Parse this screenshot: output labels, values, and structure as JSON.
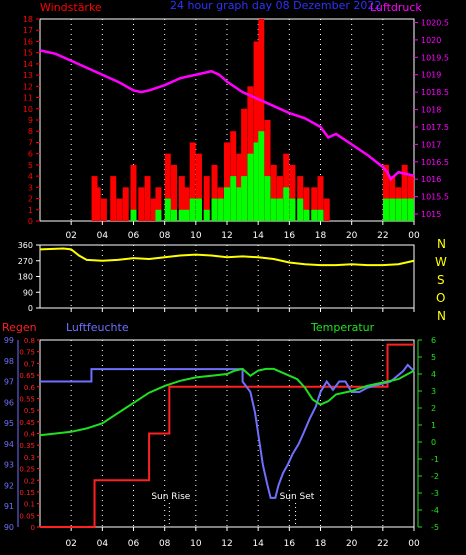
{
  "header": {
    "wind_label": "Windstärke",
    "title": "24 hour graph day 08 Dezember 2022",
    "pressure_label": "Luftdruck"
  },
  "bottom_header": {
    "rain_label": "Regen",
    "humidity_label": "Luftfeuchte",
    "temperature_label": "Temperatur"
  },
  "direction_labels": [
    "N",
    "W",
    "S",
    "O",
    "N"
  ],
  "sun": {
    "rise_label": "Sun Rise",
    "set_label": "Sun Set",
    "rise_hour": 8.3,
    "set_hour": 16.4
  },
  "colors": {
    "background": "#000000",
    "wind_gust": "#ff0000",
    "wind_avg": "#00ff00",
    "pressure": "#ff00ff",
    "direction": "#ffff00",
    "rain": "#ff2020",
    "humidity": "#7070ff",
    "temperature": "#20e020",
    "title": "#3030ff",
    "grid": "#ffffff"
  },
  "chart_data": [
    {
      "type": "bar",
      "name": "wind-pressure",
      "x_ticks": [
        "02",
        "04",
        "06",
        "08",
        "10",
        "12",
        "14",
        "16",
        "18",
        "20",
        "22",
        "00"
      ],
      "x_range_hours": [
        0,
        24
      ],
      "ylim": [
        0,
        18
      ],
      "y_ticks": [
        "0",
        "1",
        "2",
        "3",
        "4",
        "5",
        "6",
        "7",
        "8",
        "9",
        "10",
        "11",
        "12",
        "13",
        "14",
        "15",
        "16",
        "17",
        "18"
      ],
      "y2lim": [
        1014.8,
        1020.6
      ],
      "y2_ticks": [
        "1015",
        "1015.5",
        "1016",
        "1016.5",
        "1017",
        "1017.5",
        "1018",
        "1018.5",
        "1019",
        "1019.5",
        "1020",
        "1020.5"
      ],
      "series": [
        {
          "name": "Windstärke",
          "x_hours": [
            3.5,
            3.7,
            4.1,
            4.7,
            5.1,
            5.5,
            6.0,
            6.5,
            6.9,
            7.3,
            7.6,
            8.2,
            8.6,
            9.1,
            9.4,
            9.8,
            10.2,
            10.7,
            11.2,
            11.6,
            12.0,
            12.4,
            12.8,
            13.1,
            13.5,
            13.9,
            14.2,
            14.6,
            15.0,
            15.4,
            15.8,
            16.2,
            16.7,
            17.1,
            17.6,
            18.0,
            18.4,
            22.2,
            22.6,
            23.0,
            23.4,
            23.8
          ],
          "gust": [
            4,
            3,
            2,
            4,
            2,
            3,
            5,
            3,
            4,
            2,
            3,
            6,
            5,
            4,
            3,
            7,
            6,
            4,
            5,
            3,
            7,
            8,
            6,
            10,
            12,
            16,
            18,
            9,
            5,
            4,
            6,
            5,
            4,
            3,
            3,
            4,
            2,
            5,
            4,
            3,
            5,
            4
          ],
          "avg": [
            0,
            0,
            0,
            0,
            0,
            0,
            1,
            0,
            0,
            0,
            1,
            2,
            1,
            1,
            1,
            2,
            2,
            1,
            2,
            2,
            3,
            4,
            3,
            4,
            6,
            7,
            8,
            4,
            2,
            2,
            3,
            2,
            2,
            1,
            1,
            1,
            0,
            2,
            2,
            2,
            2,
            2
          ]
        },
        {
          "name": "Luftdruck",
          "x_hours": [
            0,
            1,
            2,
            3,
            4,
            5,
            6,
            6.5,
            7,
            8,
            9,
            10,
            11,
            11.5,
            12,
            13,
            14,
            15,
            16,
            17,
            18,
            18.5,
            19,
            20,
            21,
            22,
            22.3,
            22.5,
            23,
            24
          ],
          "values": [
            1019.7,
            1019.6,
            1019.4,
            1019.2,
            1019.0,
            1018.8,
            1018.55,
            1018.5,
            1018.55,
            1018.7,
            1018.9,
            1019.0,
            1019.1,
            1019.0,
            1018.8,
            1018.5,
            1018.3,
            1018.1,
            1017.9,
            1017.75,
            1017.5,
            1017.2,
            1017.3,
            1017.0,
            1016.7,
            1016.35,
            1016.2,
            1016.0,
            1016.2,
            1016.1
          ]
        }
      ]
    },
    {
      "type": "line",
      "name": "wind-direction",
      "x_ticks": [
        "02",
        "04",
        "06",
        "08",
        "10",
        "12",
        "14",
        "16",
        "18",
        "20",
        "22",
        "00"
      ],
      "ylim": [
        0,
        360
      ],
      "y_ticks": [
        "0",
        "90",
        "180",
        "270",
        "360"
      ],
      "series": [
        {
          "name": "direction",
          "x_hours": [
            0,
            1.5,
            2,
            2.5,
            3,
            4,
            5,
            6,
            7,
            8,
            9,
            10,
            11,
            12,
            13,
            14,
            15,
            16,
            17,
            18,
            19,
            20,
            21,
            22,
            23,
            24
          ],
          "values": [
            335,
            340,
            335,
            300,
            275,
            270,
            275,
            285,
            280,
            290,
            300,
            305,
            300,
            290,
            295,
            290,
            280,
            260,
            250,
            245,
            245,
            250,
            245,
            245,
            250,
            270
          ]
        }
      ]
    },
    {
      "type": "line",
      "name": "rain-humidity-temperature",
      "x_ticks": [
        "02",
        "04",
        "06",
        "08",
        "10",
        "12",
        "14",
        "16",
        "18",
        "20",
        "22",
        "00"
      ],
      "rain_ylim": [
        0,
        0.8
      ],
      "rain_ticks": [
        "0",
        "0.05",
        "0.1",
        "0.15",
        "0.2",
        "0.25",
        "0.3",
        "0.35",
        "0.4",
        "0.45",
        "0.5",
        "0.55",
        "0.6",
        "0.65",
        "0.7",
        "0.75",
        "0.8"
      ],
      "humidity_ylim": [
        90,
        99
      ],
      "humidity_ticks": [
        "90",
        "91",
        "92",
        "93",
        "94",
        "95",
        "96",
        "97",
        "98",
        "99"
      ],
      "temperature_ylim": [
        -5,
        6
      ],
      "temperature_ticks": [
        "-5",
        "-4",
        "-3",
        "-2",
        "-1",
        "0",
        "1",
        "2",
        "3",
        "4",
        "5",
        "6"
      ],
      "series": [
        {
          "name": "Regen",
          "x_hours": [
            0,
            3.5,
            3.5,
            7.0,
            7.0,
            8.3,
            8.3,
            9.1,
            9.1,
            22.3,
            22.3,
            24
          ],
          "values": [
            0,
            0,
            0.2,
            0.2,
            0.4,
            0.4,
            0.6,
            0.6,
            0.6,
            0.6,
            0.78,
            0.78
          ]
        },
        {
          "name": "Luftfeuchte",
          "x_hours": [
            0,
            3.3,
            3.3,
            13.0,
            13.0,
            13.5,
            13.8,
            14.0,
            14.3,
            14.6,
            14.8,
            15.1,
            15.3,
            15.6,
            15.9,
            16.2,
            16.6,
            16.9,
            17.3,
            17.7,
            18.0,
            18.4,
            18.8,
            19.2,
            19.6,
            20.0,
            20.5,
            21.0,
            22.5,
            23.3,
            23.6,
            24
          ],
          "values": [
            97.0,
            97.0,
            97.6,
            97.6,
            97.0,
            96.5,
            95.5,
            94.5,
            93.0,
            92.0,
            91.4,
            91.4,
            92.0,
            92.6,
            93.0,
            93.5,
            94.0,
            94.5,
            95.2,
            95.8,
            96.5,
            97.0,
            96.6,
            97.0,
            97.0,
            96.5,
            96.5,
            96.7,
            97.0,
            97.5,
            97.8,
            97.5
          ]
        },
        {
          "name": "Temperatur",
          "x_hours": [
            0,
            1,
            2,
            3,
            4,
            5,
            6,
            7,
            8,
            9,
            10,
            11,
            12,
            12.5,
            13,
            13.5,
            14,
            14.5,
            15,
            15.5,
            16,
            16.5,
            17,
            17.5,
            18,
            18.5,
            19,
            20,
            21,
            22,
            23,
            24
          ],
          "values": [
            0.4,
            0.5,
            0.6,
            0.8,
            1.1,
            1.7,
            2.3,
            2.9,
            3.3,
            3.6,
            3.8,
            3.9,
            4.0,
            4.2,
            4.3,
            3.9,
            4.2,
            4.3,
            4.3,
            4.1,
            3.9,
            3.7,
            3.2,
            2.5,
            2.2,
            2.4,
            2.8,
            3.0,
            3.3,
            3.5,
            3.7,
            4.2
          ]
        }
      ]
    }
  ]
}
